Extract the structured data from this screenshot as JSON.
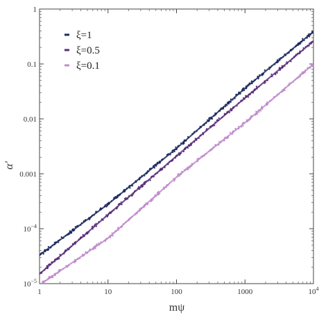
{
  "chart_data": {
    "type": "scatter",
    "xlabel": "mψ",
    "ylabel": "α'",
    "xscale": "log",
    "yscale": "log",
    "xlim": [
      1,
      10000
    ],
    "ylim": [
      1e-05,
      1
    ],
    "x_ticks": [
      {
        "value": 1,
        "label": "1"
      },
      {
        "value": 10,
        "label": "10"
      },
      {
        "value": 100,
        "label": "100"
      },
      {
        "value": 1000,
        "label": "1000"
      },
      {
        "value": 10000,
        "label": "10",
        "sup": "4"
      }
    ],
    "y_ticks": [
      {
        "value": 1e-05,
        "label": "10",
        "sup": "−5"
      },
      {
        "value": 0.0001,
        "label": "10",
        "sup": "−4"
      },
      {
        "value": 0.001,
        "label": "0.001"
      },
      {
        "value": 0.01,
        "label": "0.01"
      },
      {
        "value": 0.1,
        "label": "0.1"
      },
      {
        "value": 1,
        "label": "1"
      }
    ],
    "grid": false,
    "legend_position": "top-left",
    "series": [
      {
        "name": "ξ=1",
        "color": "#1f2a5e",
        "x": [
          1,
          10,
          100,
          1000,
          10000
        ],
        "y": [
          3.3e-05,
          0.00028,
          0.0029,
          0.036,
          0.39
        ]
      },
      {
        "name": "ξ=0.5",
        "color": "#5a2f79",
        "x": [
          1,
          10,
          100,
          1000,
          10000
        ],
        "y": [
          1.5e-05,
          0.00018,
          0.0021,
          0.024,
          0.26
        ]
      },
      {
        "name": "ξ=0.1",
        "color": "#c08ccb",
        "x": [
          1,
          10,
          100,
          1000,
          10000
        ],
        "y": [
          9.5e-06,
          6.7e-05,
          0.00087,
          0.0085,
          0.1
        ]
      }
    ]
  }
}
